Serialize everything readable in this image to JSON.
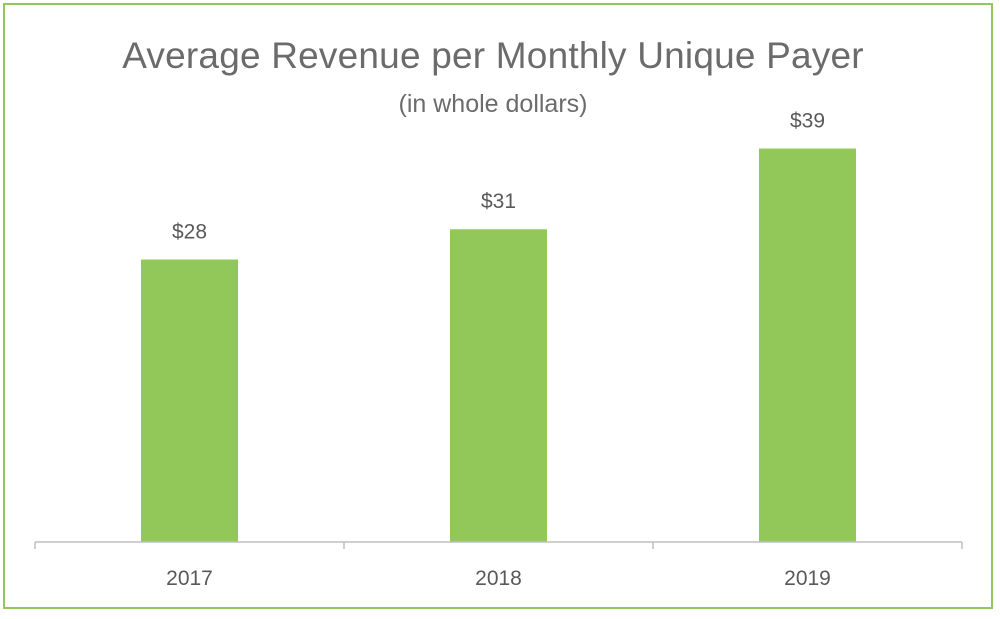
{
  "chart_data": {
    "type": "bar",
    "title": "Average Revenue per Monthly Unique Payer",
    "subtitle": "(in whole dollars)",
    "categories": [
      "2017",
      "2018",
      "2019"
    ],
    "values": [
      28,
      31,
      39
    ],
    "data_labels": [
      "$28",
      "$31",
      "$39"
    ],
    "xlabel": "",
    "ylabel": "",
    "ylim": [
      0,
      45
    ],
    "grid": false,
    "legend": "none"
  },
  "colors": {
    "bar": "#92c85a",
    "border": "#92c85a",
    "axis": "#bfbfbf",
    "text": "#595959"
  }
}
